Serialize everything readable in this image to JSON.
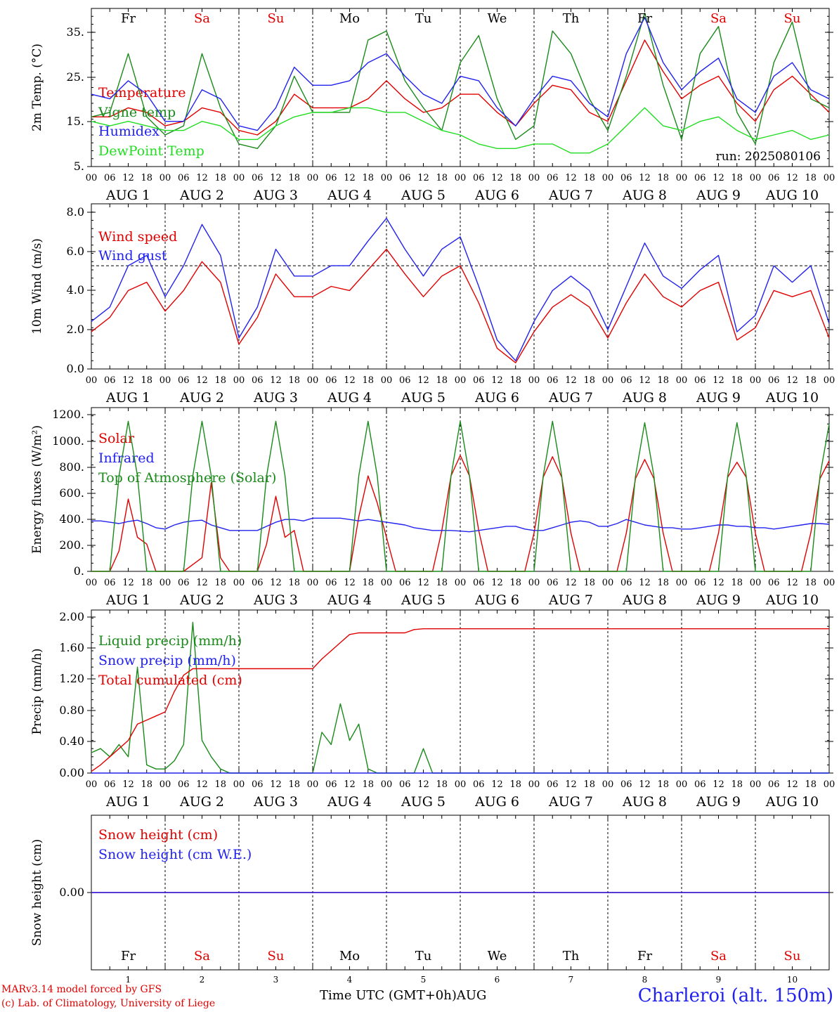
{
  "days": [
    "Fr",
    "Sa",
    "Su",
    "Mo",
    "Tu",
    "We",
    "Th",
    "Fr",
    "Sa",
    "Su"
  ],
  "day_colors": [
    "#000000",
    "#e00000",
    "#e00000",
    "#000000",
    "#000000",
    "#000000",
    "#000000",
    "#000000",
    "#e00000",
    "#e00000"
  ],
  "hour_ticks": [
    "00",
    "06",
    "12",
    "18"
  ],
  "last_hour_tick": "00",
  "date_labels": [
    "AUG  1",
    "AUG  2",
    "AUG  3",
    "AUG  4",
    "AUG  5",
    "AUG  6",
    "AUG  7",
    "AUG  8",
    "AUG  9",
    "AUG 10"
  ],
  "date_numbers": [
    "1",
    "2",
    "3",
    "4",
    "5",
    "6",
    "7",
    "8",
    "9",
    "10"
  ],
  "month_label": "AUG",
  "x_axis_title": "Time UTC (GMT+0h)",
  "run_label": "run: 2025080106",
  "credit_line1": "MARv3.14 model forced by GFS",
  "credit_line2": "(c) Lab. of Climatology, University of Liege",
  "station_label": "Charleroi (alt. 150m)",
  "colors": {
    "red": "#e00000",
    "green": "#1a8a1a",
    "blue": "#2222ee",
    "lightgreen": "#22dd22",
    "black": "#000000"
  },
  "chart_data": [
    {
      "type": "line",
      "ylabel": "2m Temp. (°C)",
      "ylim": [
        5,
        40
      ],
      "y_ticks": [
        "35.",
        "25.",
        "15.",
        "5."
      ],
      "x_hours": [
        0,
        6,
        12,
        18,
        24,
        30,
        36,
        42,
        48,
        54,
        60,
        66,
        72,
        78,
        84,
        90,
        96,
        102,
        108,
        114,
        120,
        126,
        132,
        138,
        144,
        150,
        156,
        162,
        168,
        174,
        180,
        186,
        192,
        198,
        204,
        210,
        216,
        222,
        228,
        234,
        240
      ],
      "series": [
        {
          "name": "Temperature",
          "color": "red",
          "values": [
            16,
            16,
            18,
            17,
            14,
            15,
            18,
            17,
            13,
            12,
            15,
            21,
            18,
            18,
            18,
            20,
            24,
            20,
            17,
            18,
            21,
            21,
            17,
            14,
            19,
            23,
            22,
            17,
            15,
            24,
            33,
            26,
            20,
            23,
            25,
            19,
            15,
            22,
            25,
            21,
            17
          ]
        },
        {
          "name": "Vigne temp",
          "color": "green",
          "values": [
            16,
            17,
            30,
            16,
            12,
            14,
            30,
            18,
            10,
            9,
            14,
            25,
            17,
            17,
            17,
            33,
            35,
            24,
            18,
            13,
            28,
            34,
            20,
            11,
            14,
            35,
            30,
            20,
            13,
            25,
            39,
            23,
            11,
            30,
            36,
            17,
            10,
            28,
            37,
            20,
            18
          ]
        },
        {
          "name": "Humidex",
          "color": "blue",
          "values": [
            21,
            20,
            24,
            21,
            15,
            15,
            22,
            20,
            14,
            13,
            18,
            27,
            23,
            23,
            24,
            28,
            30,
            25,
            21,
            19,
            25,
            24,
            18,
            14,
            20,
            25,
            24,
            19,
            16,
            30,
            38,
            28,
            22,
            26,
            29,
            20,
            17,
            25,
            28,
            22,
            20
          ]
        },
        {
          "name": "DewPoint Temp",
          "color": "lightgreen",
          "values": [
            15,
            14,
            15,
            14,
            13,
            13,
            15,
            14,
            11,
            11,
            14,
            16,
            17,
            17,
            18,
            18,
            17,
            17,
            15,
            13,
            12,
            10,
            9,
            9,
            10,
            10,
            8,
            8,
            10,
            14,
            18,
            14,
            13,
            15,
            16,
            13,
            11,
            12,
            13,
            11,
            12
          ]
        }
      ]
    },
    {
      "type": "line",
      "ylabel": "10m Wind (m/s)",
      "ylim": [
        0,
        8
      ],
      "y_ticks": [
        "8.0",
        "6.0",
        "4.0",
        "2.0",
        "0.0"
      ],
      "reference_line": 5,
      "x_hours": [
        0,
        6,
        12,
        18,
        24,
        30,
        36,
        42,
        48,
        54,
        60,
        66,
        72,
        78,
        84,
        90,
        96,
        102,
        108,
        114,
        120,
        126,
        132,
        138,
        144,
        150,
        156,
        162,
        168,
        174,
        180,
        186,
        192,
        198,
        204,
        210,
        216,
        222,
        228,
        234,
        240
      ],
      "series": [
        {
          "name": "Wind speed",
          "color": "red",
          "values": [
            1.8,
            2.5,
            3.8,
            4.2,
            2.8,
            3.8,
            5.2,
            4.2,
            1.2,
            2.5,
            4.6,
            3.5,
            3.5,
            4.0,
            3.8,
            4.8,
            5.8,
            4.6,
            3.5,
            4.5,
            5.0,
            3.2,
            1.0,
            0.3,
            1.8,
            3.0,
            3.6,
            3.0,
            1.5,
            3.2,
            4.6,
            3.5,
            3.0,
            3.8,
            4.2,
            1.4,
            2.0,
            3.8,
            3.5,
            3.8,
            1.5
          ]
        },
        {
          "name": "Wind gust",
          "color": "blue",
          "values": [
            2.3,
            3.0,
            5.0,
            5.5,
            3.5,
            5.0,
            7.0,
            5.5,
            1.5,
            3.0,
            5.8,
            4.5,
            4.5,
            5.0,
            5.0,
            6.2,
            7.3,
            5.8,
            4.5,
            5.8,
            6.4,
            4.0,
            1.4,
            0.4,
            2.3,
            3.8,
            4.5,
            3.8,
            1.9,
            4.0,
            6.1,
            4.5,
            3.9,
            4.8,
            5.5,
            1.8,
            2.6,
            5.0,
            4.2,
            5.0,
            2.2
          ]
        }
      ]
    },
    {
      "type": "line",
      "ylabel": "Energy fluxes (W/m²)",
      "ylim": [
        0,
        1200
      ],
      "y_ticks": [
        "1200.",
        "1000.",
        "800.",
        "600.",
        "400.",
        "200.",
        "0."
      ],
      "x_hours": [
        0,
        3,
        6,
        9,
        12,
        15,
        18,
        21,
        24,
        27,
        30,
        33,
        36,
        39,
        42,
        45,
        48,
        51,
        54,
        57,
        60,
        63,
        66,
        69,
        72,
        75,
        78,
        81,
        84,
        87,
        90,
        93,
        96,
        99,
        102,
        105,
        108,
        111,
        114,
        117,
        120,
        123,
        126,
        129,
        132,
        135,
        138,
        141,
        144,
        147,
        150,
        153,
        156,
        159,
        162,
        165,
        168,
        171,
        174,
        177,
        180,
        183,
        186,
        189,
        192,
        195,
        198,
        201,
        204,
        207,
        210,
        213,
        216,
        219,
        222,
        225,
        228,
        231,
        234,
        237,
        240
      ],
      "series": [
        {
          "name": "Solar",
          "color": "red",
          "values": [
            0,
            0,
            0,
            150,
            530,
            250,
            200,
            0,
            0,
            0,
            0,
            50,
            100,
            650,
            100,
            0,
            0,
            0,
            0,
            200,
            550,
            250,
            300,
            0,
            0,
            0,
            0,
            0,
            0,
            400,
            700,
            500,
            250,
            0,
            0,
            0,
            0,
            0,
            300,
            700,
            850,
            700,
            300,
            0,
            0,
            0,
            0,
            0,
            280,
            690,
            840,
            690,
            280,
            0,
            0,
            0,
            0,
            0,
            280,
            680,
            820,
            680,
            280,
            0,
            0,
            0,
            0,
            0,
            280,
            690,
            800,
            690,
            280,
            0,
            0,
            0,
            0,
            0,
            280,
            680,
            810
          ]
        },
        {
          "name": "Infrared",
          "color": "blue",
          "values": [
            370,
            370,
            360,
            350,
            365,
            375,
            350,
            320,
            310,
            340,
            360,
            370,
            375,
            340,
            320,
            300,
            300,
            300,
            300,
            330,
            360,
            380,
            380,
            370,
            390,
            390,
            390,
            390,
            380,
            370,
            380,
            370,
            360,
            350,
            340,
            320,
            310,
            300,
            300,
            300,
            295,
            290,
            300,
            310,
            320,
            330,
            330,
            310,
            300,
            300,
            320,
            340,
            360,
            370,
            360,
            330,
            330,
            350,
            380,
            360,
            340,
            330,
            320,
            320,
            310,
            310,
            320,
            330,
            340,
            340,
            330,
            330,
            320,
            320,
            310,
            320,
            330,
            340,
            350,
            350,
            345
          ]
        },
        {
          "name": "Top of Atmosphere (Solar)",
          "color": "green",
          "values": [
            0,
            0,
            0,
            700,
            1100,
            700,
            0,
            0,
            0,
            0,
            0,
            700,
            1100,
            700,
            0,
            0,
            0,
            0,
            0,
            700,
            1100,
            700,
            0,
            0,
            0,
            0,
            0,
            0,
            0,
            700,
            1100,
            700,
            0,
            0,
            0,
            0,
            0,
            0,
            0,
            700,
            1100,
            700,
            0,
            0,
            0,
            0,
            0,
            0,
            0,
            700,
            1100,
            700,
            0,
            0,
            0,
            0,
            0,
            0,
            0,
            700,
            1090,
            700,
            0,
            0,
            0,
            0,
            0,
            0,
            0,
            700,
            1090,
            700,
            0,
            0,
            0,
            0,
            0,
            0,
            0,
            700,
            1080
          ]
        }
      ]
    },
    {
      "type": "line",
      "ylabel": "Precip (mm/h)",
      "ylim": [
        0,
        2.0
      ],
      "y_ticks": [
        "2.00",
        "1.60",
        "1.20",
        "0.80",
        "0.40",
        "0.00"
      ],
      "x_hours": [
        0,
        3,
        6,
        9,
        12,
        15,
        18,
        21,
        24,
        27,
        30,
        33,
        36,
        39,
        42,
        45,
        48,
        51,
        54,
        57,
        60,
        63,
        66,
        69,
        72,
        75,
        78,
        81,
        84,
        87,
        90,
        93,
        96,
        99,
        102,
        105,
        108,
        111,
        114,
        117,
        120,
        240
      ],
      "series": [
        {
          "name": "Liquid precip (mm/h)",
          "color": "green",
          "values": [
            0.25,
            0.3,
            0.2,
            0.35,
            0.2,
            1.3,
            0.1,
            0.05,
            0.05,
            0.15,
            0.35,
            1.85,
            0.4,
            0.2,
            0.05,
            0,
            0,
            0,
            0,
            0,
            0,
            0,
            0,
            0,
            0,
            0.5,
            0.35,
            0.85,
            0.4,
            0.6,
            0.05,
            0,
            0,
            0,
            0,
            0,
            0.3,
            0,
            0,
            0,
            0,
            0
          ]
        },
        {
          "name": "Snow precip (mm/h)",
          "color": "blue",
          "values": [
            0,
            0,
            0,
            0,
            0,
            0,
            0,
            0,
            0,
            0,
            0,
            0,
            0,
            0,
            0,
            0,
            0,
            0,
            0,
            0,
            0,
            0,
            0,
            0,
            0,
            0,
            0,
            0,
            0,
            0,
            0,
            0,
            0,
            0,
            0,
            0,
            0,
            0,
            0,
            0,
            0,
            0
          ]
        },
        {
          "name": "Total cumulated (cm)",
          "color": "red",
          "values": [
            0.02,
            0.1,
            0.2,
            0.3,
            0.4,
            0.6,
            0.65,
            0.7,
            0.75,
            1.0,
            1.2,
            1.28,
            1.28,
            1.28,
            1.28,
            1.28,
            1.28,
            1.28,
            1.28,
            1.28,
            1.28,
            1.28,
            1.28,
            1.28,
            1.28,
            1.4,
            1.5,
            1.6,
            1.7,
            1.72,
            1.72,
            1.72,
            1.72,
            1.72,
            1.72,
            1.76,
            1.77,
            1.77,
            1.77,
            1.77,
            1.77,
            1.77
          ]
        }
      ]
    },
    {
      "type": "line",
      "ylabel": "Snow height (cm)",
      "y_ticks": [
        "0.00"
      ],
      "x_hours": [
        0,
        240
      ],
      "series": [
        {
          "name": "Snow height (cm)",
          "color": "red",
          "values": [
            0,
            0
          ]
        },
        {
          "name": "Snow height (cm W.E.)",
          "color": "blue",
          "values": [
            0,
            0
          ]
        }
      ]
    }
  ]
}
